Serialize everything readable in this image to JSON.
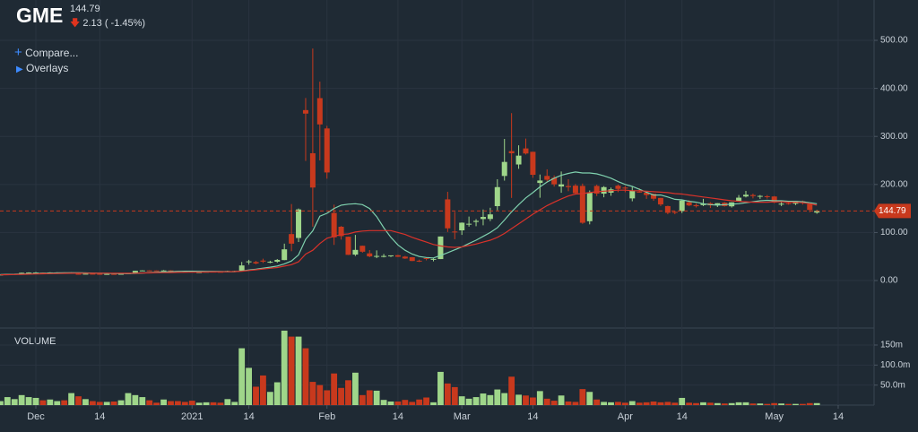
{
  "header": {
    "ticker": "GME",
    "change": "2.13 ( -1.45%)",
    "compare": "Compare...",
    "overlays": "Overlays"
  },
  "chart_data": {
    "type": "candlestick",
    "last_price": 144.79,
    "volume_title": "VOLUME",
    "up_color": "#9fd68a",
    "down_color": "#c8391d",
    "last_color": "#c8391d",
    "grid": true,
    "categories": [
      null,
      null,
      null,
      null,
      null,
      "Dec",
      null,
      null,
      null,
      null,
      null,
      null,
      null,
      null,
      "14",
      null,
      null,
      null,
      null,
      null,
      null,
      null,
      null,
      null,
      null,
      null,
      null,
      "2021",
      null,
      null,
      null,
      null,
      null,
      null,
      null,
      "14",
      null,
      null,
      null,
      null,
      null,
      null,
      null,
      null,
      null,
      null,
      "Feb",
      null,
      null,
      null,
      null,
      null,
      null,
      null,
      null,
      null,
      "14",
      null,
      null,
      null,
      null,
      null,
      null,
      null,
      null,
      "Mar",
      null,
      null,
      null,
      null,
      null,
      null,
      null,
      null,
      null,
      "14",
      null,
      null,
      null,
      null,
      null,
      null,
      null,
      null,
      null,
      null,
      null,
      null,
      "Apr",
      null,
      null,
      null,
      null,
      null,
      null,
      null,
      "14",
      null,
      null,
      null,
      null,
      null,
      null,
      null,
      null,
      null,
      null,
      null,
      null,
      "May",
      null,
      null,
      null,
      null,
      null,
      null,
      null,
      null,
      "14"
    ],
    "open": [
      12.1,
      12.4,
      13.6,
      14.0,
      16.0,
      16.6,
      16.5,
      16.1,
      16.9,
      16.8,
      16.3,
      14.0,
      13.7,
      14.2,
      13.9,
      13.7,
      13.7,
      13.6,
      14.0,
      15.3,
      20.5,
      21.0,
      20.9,
      20.2,
      21.0,
      20.0,
      19.3,
      19.0,
      17.3,
      17.3,
      18.5,
      18.2,
      19.4,
      19.9,
      20.4,
      38.5,
      38.5,
      41.6,
      37.4,
      39.2,
      42.6,
      96.7,
      88.6,
      354.8,
      265.0,
      379.7,
      316.6,
      140.8,
      112.0,
      91.2,
      54.0,
      72.4,
      56.6,
      50.8,
      50.0,
      50.8,
      52.7,
      49.8,
      48.5,
      41.3,
      46.7,
      44.7,
      44.7,
      169.0,
      102.0,
      104.5,
      116.9,
      122.0,
      128.0,
      128.2,
      154.9,
      217.7,
      269.4,
      241.6,
      275.0,
      268.0,
      203.2,
      217.8,
      214.0,
      195.7,
      196.8,
      197.5,
      197.0,
      123.5,
      197.0,
      180.9,
      183.0,
      197.5,
      193.5,
      171.0,
      185.0,
      183.0,
      180.5,
      172.0,
      155.0,
      143.0,
      144.5,
      163.0,
      157.0,
      157.0,
      161.0,
      157.0,
      162.0,
      154.5,
      165.0,
      175.0,
      178.0,
      176.0,
      175.5,
      175.0,
      160.0,
      161.0,
      160.0,
      165.0,
      159.0,
      141.5,
      null,
      null,
      null
    ],
    "high": [
      12.6,
      13.8,
      14.0,
      16.5,
      17.2,
      17.7,
      16.9,
      17.3,
      17.2,
      17.0,
      17.1,
      14.8,
      14.4,
      14.3,
      14.2,
      14.0,
      14.0,
      14.3,
      15.6,
      20.5,
      21.4,
      21.5,
      21.0,
      21.8,
      21.4,
      20.3,
      19.5,
      19.1,
      18.1,
      18.9,
      19.4,
      18.3,
      20.6,
      20.4,
      38.7,
      43.1,
      40.8,
      45.5,
      41.2,
      44.8,
      76.8,
      159.2,
      150.0,
      380.0,
      483.0,
      414.0,
      322.0,
      158.0,
      113.4,
      91.5,
      95.0,
      72.7,
      63.5,
      62.8,
      55.3,
      52.0,
      53.5,
      51.2,
      48.9,
      43.5,
      48.5,
      46.2,
      91.7,
      184.7,
      142.9,
      121.0,
      133.2,
      127.8,
      147.9,
      151.5,
      210.9,
      294.8,
      348.5,
      281.5,
      295.5,
      268.0,
      220.7,
      231.5,
      218.9,
      227.0,
      210.9,
      201.0,
      201.8,
      187.5,
      199.5,
      196.5,
      193.5,
      199.8,
      196.7,
      195.0,
      192.0,
      186.5,
      180.8,
      172.0,
      155.8,
      145.5,
      167.0,
      167.5,
      160.5,
      170.0,
      163.0,
      161.0,
      163.5,
      163.0,
      178.0,
      186.5,
      181.0,
      178.0,
      178.0,
      176.0,
      164.5,
      163.0,
      166.0,
      166.5,
      160.5,
      147.0,
      null,
      null,
      null
    ],
    "low": [
      11.8,
      12.3,
      13.3,
      14.0,
      15.7,
      16.4,
      15.8,
      16.0,
      16.3,
      15.7,
      16.0,
      13.1,
      13.5,
      13.6,
      13.4,
      13.3,
      13.4,
      13.5,
      14.0,
      15.0,
      19.8,
      20.5,
      20.2,
      20.0,
      20.0,
      19.3,
      18.6,
      17.2,
      17.2,
      17.2,
      18.0,
      17.1,
      19.0,
      19.0,
      20.0,
      33.1,
      34.0,
      36.6,
      36.1,
      37.0,
      42.3,
      61.1,
      80.2,
      249.0,
      112.3,
      250.0,
      212.0,
      74.2,
      85.3,
      53.3,
      51.1,
      58.0,
      48.5,
      46.6,
      48.2,
      49.1,
      49.0,
      45.0,
      40.5,
      38.5,
      42.0,
      40.0,
      44.7,
      101.0,
      86.0,
      95.0,
      112.2,
      113.1,
      115.0,
      123.7,
      146.1,
      208.0,
      172.0,
      232.6,
      262.3,
      213.9,
      172.4,
      204.0,
      195.6,
      182.7,
      186.0,
      180.0,
      118.0,
      117.0,
      176.0,
      173.3,
      176.5,
      184.0,
      183.8,
      165.0,
      183.0,
      170.0,
      166.0,
      155.0,
      138.0,
      138.0,
      140.5,
      155.0,
      152.0,
      155.0,
      151.0,
      153.0,
      154.0,
      152.0,
      164.0,
      173.0,
      171.0,
      170.0,
      170.5,
      161.0,
      155.0,
      158.0,
      157.0,
      158.0,
      142.0,
      139.0,
      null,
      null,
      null
    ],
    "close": [
      12.4,
      13.5,
      13.9,
      16.1,
      16.6,
      16.6,
      16.0,
      16.9,
      16.9,
      16.1,
      16.9,
      13.7,
      14.2,
      13.9,
      13.7,
      13.7,
      13.6,
      14.0,
      15.3,
      20.2,
      21.0,
      20.9,
      20.2,
      21.0,
      20.0,
      19.4,
      18.8,
      17.3,
      17.4,
      18.4,
      18.1,
      17.7,
      19.9,
      19.95,
      31.4,
      39.9,
      35.5,
      39.4,
      39.1,
      43.0,
      65.0,
      76.8,
      148.0,
      347.5,
      193.6,
      325.0,
      225.0,
      90.0,
      92.4,
      53.5,
      63.8,
      60.0,
      50.3,
      51.2,
      51.1,
      52.4,
      49.5,
      45.9,
      40.7,
      40.6,
      46.0,
      45.0,
      91.7,
      108.7,
      101.7,
      120.4,
      118.2,
      124.2,
      132.4,
      137.7,
      194.5,
      246.9,
      265.0,
      260.0,
      264.5,
      220.1,
      208.2,
      209.8,
      200.3,
      200.3,
      194.5,
      181.8,
      120.3,
      183.8,
      181.0,
      194.5,
      189.8,
      190.8,
      191.5,
      187.0,
      184.5,
      178.0,
      170.3,
      158.4,
      141.1,
      141.0,
      166.5,
      156.4,
      154.7,
      160.1,
      156.6,
      161.0,
      155.0,
      162.7,
      172.5,
      178.6,
      175.8,
      176.2,
      173.6,
      162.2,
      160.0,
      160.8,
      165.5,
      161.5,
      146.9,
      144.79,
      null,
      null,
      null
    ],
    "volume": [
      10,
      20,
      15,
      25,
      20,
      18,
      12,
      14,
      10,
      12,
      30,
      22,
      15,
      10,
      8,
      8,
      9,
      12,
      30,
      25,
      20,
      12,
      6,
      14,
      10,
      10,
      8,
      11,
      6,
      7,
      7,
      6,
      15,
      8,
      142,
      93,
      46,
      74,
      33,
      57,
      186,
      171,
      171,
      142,
      58,
      50,
      37,
      79,
      43,
      62,
      81,
      25,
      37,
      36,
      13,
      9,
      9,
      13,
      8,
      14,
      19,
      7,
      83,
      54,
      45,
      22,
      16,
      20,
      29,
      25,
      39,
      30,
      71,
      26,
      24,
      19,
      35,
      16,
      11,
      24,
      9,
      8,
      40,
      33,
      14,
      8,
      7,
      8,
      6,
      10,
      6,
      7,
      9,
      7,
      8,
      6,
      18,
      6,
      5,
      7,
      6,
      5,
      4,
      5,
      7,
      7,
      4,
      4,
      3,
      5,
      4,
      3,
      3,
      3,
      5,
      5,
      null,
      null,
      null
    ],
    "lines": [
      {
        "color": "#7fd1ae",
        "values": [
          12.5,
          12.8,
          13.1,
          13.6,
          14.1,
          14.6,
          15,
          15.4,
          15.8,
          16.1,
          16.3,
          16.0,
          15.8,
          15.5,
          15.2,
          14.9,
          14.6,
          14.4,
          14.4,
          15,
          15.7,
          16.4,
          17.1,
          17.8,
          18.5,
          19.1,
          19.5,
          19.4,
          19.3,
          19.1,
          18.9,
          18.6,
          18.5,
          18.5,
          20,
          22,
          23.7,
          25.7,
          27.8,
          30.2,
          34.8,
          40.6,
          53.4,
          86,
          103.5,
          134,
          140,
          150,
          157,
          159,
          160,
          158,
          150,
          133,
          110,
          90,
          74,
          63,
          55,
          50,
          48,
          47,
          52,
          58,
          64,
          70,
          77,
          84,
          92,
          100,
          110,
          126,
          143,
          158,
          172,
          183,
          195,
          205,
          213,
          219,
          223,
          226,
          224,
          224,
          222,
          218,
          213,
          206,
          200,
          196,
          190,
          184,
          178,
          178,
          174,
          169,
          168,
          165,
          163,
          160,
          158,
          157,
          158,
          159,
          160,
          162,
          164,
          166,
          167,
          166,
          166,
          165,
          165,
          164,
          162,
          160,
          null,
          null,
          null
        ]
      },
      {
        "color": "#d8322a",
        "values": [
          12,
          12.2,
          12.5,
          12.8,
          13.2,
          13.6,
          14,
          14.3,
          14.6,
          14.9,
          15.2,
          15.3,
          15.4,
          15.4,
          15.4,
          15.4,
          15.3,
          15.2,
          15.1,
          15.3,
          15.6,
          15.9,
          16.2,
          16.5,
          16.7,
          17,
          17.2,
          17.3,
          17.5,
          17.7,
          17.9,
          18.1,
          18.3,
          18.6,
          19.5,
          21,
          22.5,
          24,
          25.5,
          27,
          30,
          33,
          39,
          55,
          63,
          77,
          88,
          92,
          96,
          97,
          101,
          103,
          104,
          104,
          104,
          104,
          100,
          96,
          90,
          85,
          80,
          75,
          72,
          70,
          69,
          70,
          73,
          76,
          80,
          84,
          90,
          98,
          108,
          118,
          128,
          138,
          147,
          156,
          163,
          170,
          176,
          180,
          181,
          183,
          185,
          186,
          187,
          188,
          188,
          187,
          187,
          186,
          185,
          184,
          183,
          181,
          180,
          178,
          176,
          174,
          172,
          170,
          168,
          166,
          165,
          164,
          163,
          163,
          163,
          164,
          164,
          163,
          163,
          162,
          160,
          157,
          null,
          null,
          null
        ]
      }
    ],
    "ylim": [
      -97,
      584
    ],
    "yticks": [
      {
        "value": 0,
        "label": "0.00"
      },
      {
        "value": 100,
        "label": "100.00"
      },
      {
        "value": 200,
        "label": "200.00"
      },
      {
        "value": 300,
        "label": "300.00"
      },
      {
        "value": 400,
        "label": "400.00"
      },
      {
        "value": 500,
        "label": "500.00"
      }
    ],
    "y2lim": [
      0,
      188
    ],
    "y2ticks": [
      {
        "value": 50,
        "label": "50.0m"
      },
      {
        "value": 100,
        "label": "100.0m"
      },
      {
        "value": 150,
        "label": "150m"
      }
    ]
  }
}
